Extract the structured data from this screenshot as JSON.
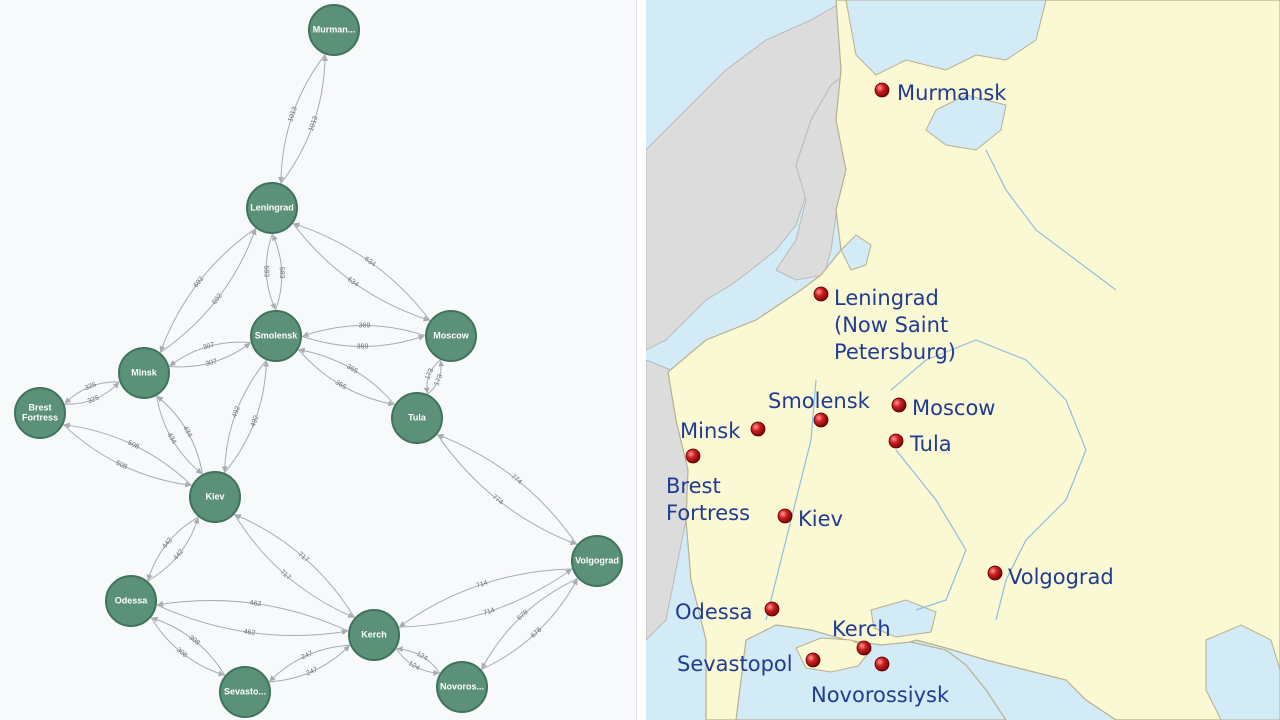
{
  "graph": {
    "nodes": [
      {
        "id": "murmansk",
        "label": "Murman..."
      },
      {
        "id": "leningrad",
        "label": "Leningrad"
      },
      {
        "id": "smolensk",
        "label": "Smolensk"
      },
      {
        "id": "moscow",
        "label": "Moscow"
      },
      {
        "id": "minsk",
        "label": "Minsk"
      },
      {
        "id": "brest",
        "label": "Brest Fortress"
      },
      {
        "id": "tula",
        "label": "Tula"
      },
      {
        "id": "kiev",
        "label": "Kiev"
      },
      {
        "id": "volgograd",
        "label": "Volgograd"
      },
      {
        "id": "odessa",
        "label": "Odessa"
      },
      {
        "id": "kerch",
        "label": "Kerch"
      },
      {
        "id": "sevastopol",
        "label": "Sevasto..."
      },
      {
        "id": "novorossiysk",
        "label": "Novoros..."
      }
    ],
    "edges": [
      {
        "from": "murmansk",
        "to": "leningrad",
        "weight": "1013"
      },
      {
        "from": "leningrad",
        "to": "murmansk",
        "weight": "1013"
      },
      {
        "from": "minsk",
        "to": "leningrad",
        "weight": "692"
      },
      {
        "from": "leningrad",
        "to": "minsk",
        "weight": "692"
      },
      {
        "from": "leningrad",
        "to": "smolensk",
        "weight": "583"
      },
      {
        "from": "smolensk",
        "to": "leningrad",
        "weight": "583"
      },
      {
        "from": "leningrad",
        "to": "moscow",
        "weight": "634"
      },
      {
        "from": "moscow",
        "to": "leningrad",
        "weight": "634"
      },
      {
        "from": "moscow",
        "to": "smolensk",
        "weight": "369"
      },
      {
        "from": "smolensk",
        "to": "moscow",
        "weight": "369"
      },
      {
        "from": "smolensk",
        "to": "minsk",
        "weight": "307"
      },
      {
        "from": "minsk",
        "to": "smolensk",
        "weight": "307"
      },
      {
        "from": "smolensk",
        "to": "tula",
        "weight": "365"
      },
      {
        "from": "tula",
        "to": "smolensk",
        "weight": "365"
      },
      {
        "from": "moscow",
        "to": "tula",
        "weight": "173"
      },
      {
        "from": "tula",
        "to": "moscow",
        "weight": "173"
      },
      {
        "from": "minsk",
        "to": "brest",
        "weight": "325"
      },
      {
        "from": "brest",
        "to": "minsk",
        "weight": "325"
      },
      {
        "from": "minsk",
        "to": "kiev",
        "weight": "434"
      },
      {
        "from": "kiev",
        "to": "minsk",
        "weight": "434"
      },
      {
        "from": "brest",
        "to": "kiev",
        "weight": "508"
      },
      {
        "from": "kiev",
        "to": "brest",
        "weight": "508"
      },
      {
        "from": "smolensk",
        "to": "kiev",
        "weight": "492"
      },
      {
        "from": "kiev",
        "to": "smolensk",
        "weight": "492"
      },
      {
        "from": "tula",
        "to": "volgograd",
        "weight": "774"
      },
      {
        "from": "volgograd",
        "to": "tula",
        "weight": "774"
      },
      {
        "from": "kiev",
        "to": "odessa",
        "weight": "442"
      },
      {
        "from": "odessa",
        "to": "kiev",
        "weight": "442"
      },
      {
        "from": "kiev",
        "to": "kerch",
        "weight": "717"
      },
      {
        "from": "kerch",
        "to": "kiev",
        "weight": "717"
      },
      {
        "from": "odessa",
        "to": "kerch",
        "weight": "462"
      },
      {
        "from": "kerch",
        "to": "odessa",
        "weight": "462"
      },
      {
        "from": "odessa",
        "to": "sevastopol",
        "weight": "308"
      },
      {
        "from": "sevastopol",
        "to": "odessa",
        "weight": "308"
      },
      {
        "from": "kerch",
        "to": "sevastopol",
        "weight": "247"
      },
      {
        "from": "sevastopol",
        "to": "kerch",
        "weight": "247"
      },
      {
        "from": "kerch",
        "to": "volgograd",
        "weight": "714"
      },
      {
        "from": "volgograd",
        "to": "kerch",
        "weight": "714"
      },
      {
        "from": "kerch",
        "to": "novorossiysk",
        "weight": "124"
      },
      {
        "from": "novorossiysk",
        "to": "kerch",
        "weight": "124"
      },
      {
        "from": "volgograd",
        "to": "novorossiysk",
        "weight": "678"
      },
      {
        "from": "novorossiysk",
        "to": "volgograd",
        "weight": "678"
      }
    ],
    "colors": {
      "node_fill": "#5a9178",
      "node_stroke": "#3f735c",
      "edge": "#a8abb3",
      "edge_label": "#6b6f78"
    }
  },
  "map": {
    "cities": [
      {
        "id": "murmansk",
        "label_lines": [
          "Murmansk"
        ]
      },
      {
        "id": "leningrad",
        "label_lines": [
          "Leningrad",
          "(Now Saint",
          "Petersburg)"
        ]
      },
      {
        "id": "smolensk",
        "label_lines": [
          "Smolensk"
        ]
      },
      {
        "id": "moscow",
        "label_lines": [
          "Moscow"
        ]
      },
      {
        "id": "minsk",
        "label_lines": [
          "Minsk"
        ]
      },
      {
        "id": "tula",
        "label_lines": [
          "Tula"
        ]
      },
      {
        "id": "brest",
        "label_lines": [
          "Brest",
          "Fortress"
        ]
      },
      {
        "id": "kiev",
        "label_lines": [
          "Kiev"
        ]
      },
      {
        "id": "volgograd",
        "label_lines": [
          "Volgograd"
        ]
      },
      {
        "id": "odessa",
        "label_lines": [
          "Odessa"
        ]
      },
      {
        "id": "kerch",
        "label_lines": [
          "Kerch"
        ]
      },
      {
        "id": "sevastopol",
        "label_lines": [
          "Sevastopol"
        ]
      },
      {
        "id": "novorossiysk",
        "label_lines": [
          "Novorossiysk"
        ]
      }
    ],
    "colors": {
      "water": "#d3eaf7",
      "land": "#fbf8d4",
      "foreign_land": "#dcdcdc",
      "border": "#b9b08e",
      "marker": "#c11b1b",
      "label": "#1f3c92"
    }
  }
}
